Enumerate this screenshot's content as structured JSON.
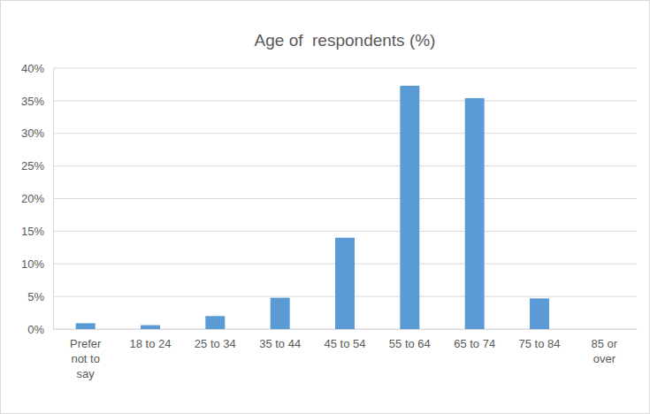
{
  "chart_data": {
    "type": "bar",
    "title": "Age of  respondents (%)",
    "categories": [
      "Prefer not to say",
      "18 to 24",
      "25 to 34",
      "35 to 44",
      "45 to 54",
      "55 to 64",
      "65 to 74",
      "75 to 84",
      "85 or over"
    ],
    "values": [
      0.9,
      0.6,
      2.0,
      4.8,
      14.0,
      37.3,
      35.4,
      4.7,
      0
    ],
    "color": "#5b9bd5",
    "ylim": [
      0,
      40
    ],
    "yticks": [
      {
        "value": 0,
        "label": "0%"
      },
      {
        "value": 5,
        "label": "5%"
      },
      {
        "value": 10,
        "label": "10%"
      },
      {
        "value": 15,
        "label": "15%"
      },
      {
        "value": 20,
        "label": "20%"
      },
      {
        "value": 25,
        "label": "25%"
      },
      {
        "value": 30,
        "label": "30%"
      },
      {
        "value": 35,
        "label": "35%"
      },
      {
        "value": 40,
        "label": "40%"
      }
    ],
    "grid": true
  }
}
